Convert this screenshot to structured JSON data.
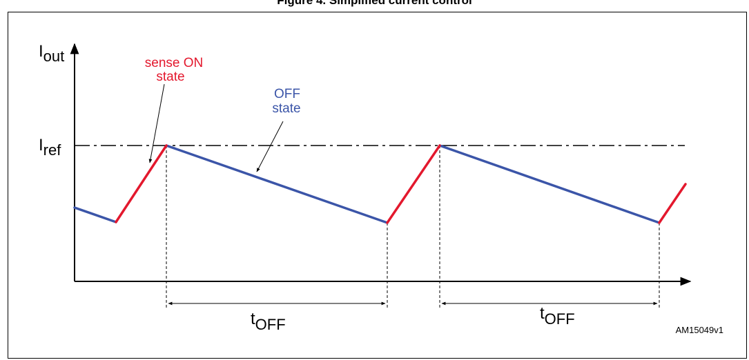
{
  "title": "Figure 4. Simplified current control",
  "axis": {
    "y_label_main": "I",
    "y_label_sub": "out"
  },
  "reference": {
    "label_main": "I",
    "label_sub": "ref"
  },
  "annotations": {
    "on_state_line1": "sense ON",
    "on_state_line2": "state",
    "off_state_line1": "OFF",
    "off_state_line2": "state"
  },
  "intervals": [
    {
      "label_main": "t",
      "label_sub": "OFF"
    },
    {
      "label_main": "t",
      "label_sub": "OFF"
    }
  ],
  "figure_id": "AM15049v1",
  "colors": {
    "on_state": "#e3182d",
    "off_state": "#3b55a8",
    "axis": "#000000"
  }
}
